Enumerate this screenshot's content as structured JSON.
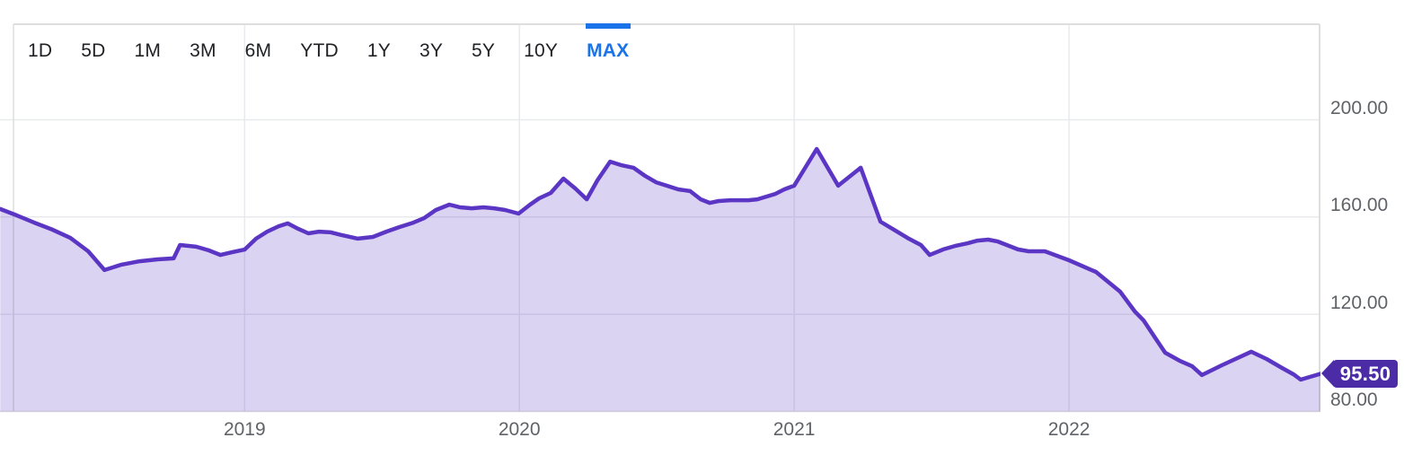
{
  "toolbar": {
    "tabs": [
      {
        "label": "1D",
        "active": false
      },
      {
        "label": "5D",
        "active": false
      },
      {
        "label": "1M",
        "active": false
      },
      {
        "label": "3M",
        "active": false
      },
      {
        "label": "6M",
        "active": false
      },
      {
        "label": "YTD",
        "active": false
      },
      {
        "label": "1Y",
        "active": false
      },
      {
        "label": "3Y",
        "active": false
      },
      {
        "label": "5Y",
        "active": false
      },
      {
        "label": "10Y",
        "active": false
      },
      {
        "label": "MAX",
        "active": true
      }
    ]
  },
  "price_badge": {
    "value": "95.50"
  },
  "colors": {
    "accent_blue": "#1a73e8",
    "tab_text": "#202124",
    "axis_text": "#5f6368",
    "gridline": "#e8eaed",
    "border": "#dedede",
    "line_purple": "#5b35c4",
    "fill_purple": "#d9d0ef",
    "badge_purple": "#4c2ba7"
  },
  "chart_data": {
    "type": "area",
    "x_unit": "decimal_year",
    "xlim": [
      2018.11,
      2022.915
    ],
    "ylim": [
      80,
      239
    ],
    "grid": true,
    "legend": "none",
    "last_price": 95.5,
    "last_price_label": "95.50",
    "y_ticks": [
      {
        "v": 80,
        "label": "80.00"
      },
      {
        "v": 120,
        "label": "120.00"
      },
      {
        "v": 160,
        "label": "160.00"
      },
      {
        "v": 200,
        "label": "200.00"
      }
    ],
    "x_gridlines": [
      {
        "t": 2019,
        "label": "2019"
      },
      {
        "t": 2020,
        "label": "2020"
      },
      {
        "t": 2021,
        "label": "2021"
      },
      {
        "t": 2022,
        "label": "2022"
      }
    ],
    "points": [
      [
        2018.111,
        163.3
      ],
      [
        2018.17,
        160.7
      ],
      [
        2018.235,
        157.7
      ],
      [
        2018.301,
        154.8
      ],
      [
        2018.366,
        151.4
      ],
      [
        2018.431,
        145.9
      ],
      [
        2018.49,
        138.2
      ],
      [
        2018.552,
        140.4
      ],
      [
        2018.618,
        141.8
      ],
      [
        2018.683,
        142.6
      ],
      [
        2018.742,
        143.0
      ],
      [
        2018.765,
        148.5
      ],
      [
        2018.824,
        147.8
      ],
      [
        2018.869,
        146.3
      ],
      [
        2018.912,
        144.4
      ],
      [
        2018.954,
        145.5
      ],
      [
        2019.0,
        146.6
      ],
      [
        2019.042,
        151.1
      ],
      [
        2019.082,
        154.0
      ],
      [
        2019.124,
        156.2
      ],
      [
        2019.157,
        157.4
      ],
      [
        2019.196,
        155.1
      ],
      [
        2019.232,
        153.3
      ],
      [
        2019.271,
        154.0
      ],
      [
        2019.314,
        153.7
      ],
      [
        2019.353,
        152.6
      ],
      [
        2019.412,
        151.1
      ],
      [
        2019.467,
        151.8
      ],
      [
        2019.516,
        154.0
      ],
      [
        2019.565,
        155.9
      ],
      [
        2019.614,
        157.7
      ],
      [
        2019.654,
        159.6
      ],
      [
        2019.696,
        162.9
      ],
      [
        2019.745,
        165.1
      ],
      [
        2019.784,
        164.0
      ],
      [
        2019.827,
        163.6
      ],
      [
        2019.869,
        164.0
      ],
      [
        2019.908,
        163.6
      ],
      [
        2019.948,
        162.9
      ],
      [
        2019.997,
        161.4
      ],
      [
        2020.039,
        165.1
      ],
      [
        2020.072,
        167.7
      ],
      [
        2020.114,
        169.9
      ],
      [
        2020.16,
        175.8
      ],
      [
        2020.203,
        171.8
      ],
      [
        2020.245,
        167.3
      ],
      [
        2020.284,
        175.1
      ],
      [
        2020.33,
        182.8
      ],
      [
        2020.369,
        181.4
      ],
      [
        2020.415,
        180.3
      ],
      [
        2020.458,
        176.9
      ],
      [
        2020.497,
        174.3
      ],
      [
        2020.536,
        172.9
      ],
      [
        2020.578,
        171.4
      ],
      [
        2020.621,
        170.7
      ],
      [
        2020.66,
        167.3
      ],
      [
        2020.693,
        165.8
      ],
      [
        2020.725,
        166.6
      ],
      [
        2020.768,
        166.9
      ],
      [
        2020.833,
        166.9
      ],
      [
        2020.866,
        167.3
      ],
      [
        2020.931,
        169.5
      ],
      [
        2020.964,
        171.4
      ],
      [
        2021.0,
        172.9
      ],
      [
        2021.082,
        188.0
      ],
      [
        2021.16,
        172.9
      ],
      [
        2021.242,
        180.3
      ],
      [
        2021.314,
        158.1
      ],
      [
        2021.379,
        153.7
      ],
      [
        2021.412,
        151.4
      ],
      [
        2021.461,
        148.5
      ],
      [
        2021.493,
        144.4
      ],
      [
        2021.542,
        146.7
      ],
      [
        2021.585,
        148.1
      ],
      [
        2021.631,
        149.2
      ],
      [
        2021.667,
        150.3
      ],
      [
        2021.706,
        150.7
      ],
      [
        2021.739,
        150.0
      ],
      [
        2021.814,
        146.7
      ],
      [
        2021.853,
        145.9
      ],
      [
        2021.912,
        145.9
      ],
      [
        2022.0,
        142.2
      ],
      [
        2022.082,
        138.2
      ],
      [
        2022.098,
        137.4
      ],
      [
        2022.186,
        129.3
      ],
      [
        2022.239,
        121.2
      ],
      [
        2022.271,
        117.5
      ],
      [
        2022.317,
        109.7
      ],
      [
        2022.35,
        104.2
      ],
      [
        2022.402,
        100.9
      ],
      [
        2022.448,
        98.6
      ],
      [
        2022.484,
        95.0
      ],
      [
        2022.556,
        99.0
      ],
      [
        2022.663,
        104.6
      ],
      [
        2022.719,
        101.6
      ],
      [
        2022.775,
        97.9
      ],
      [
        2022.817,
        95.3
      ],
      [
        2022.843,
        93.1
      ],
      [
        2022.915,
        95.5
      ]
    ]
  }
}
